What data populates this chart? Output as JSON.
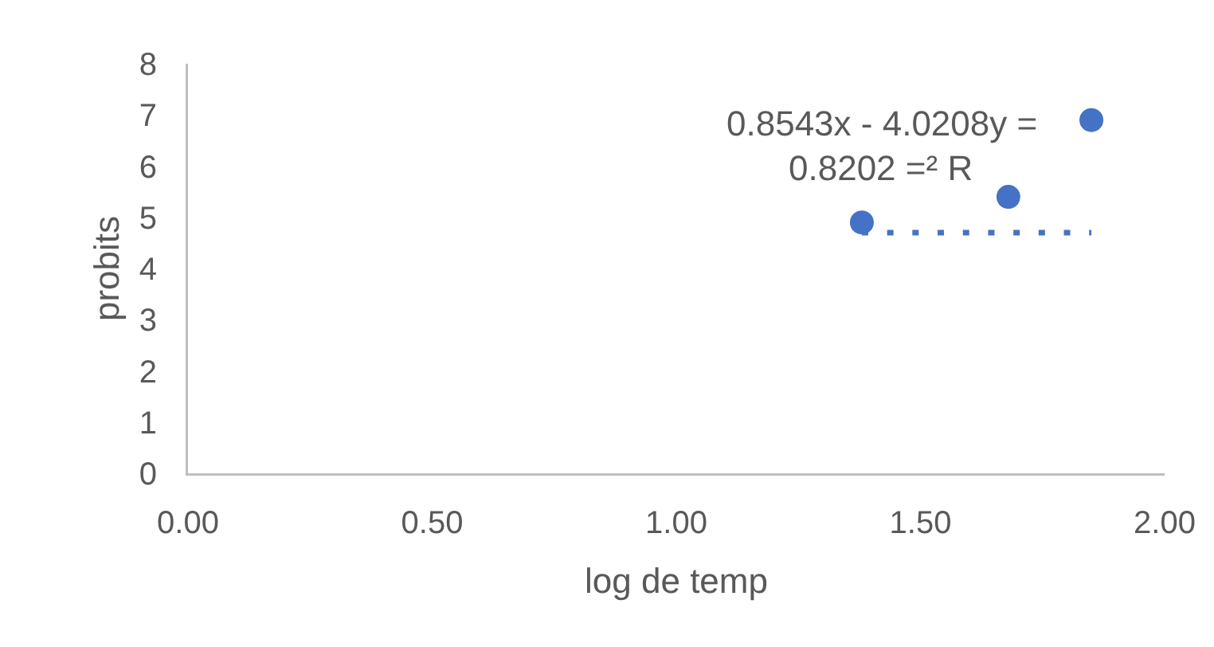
{
  "chart_data": {
    "type": "scatter",
    "xlabel": "log de temp",
    "ylabel": "probits",
    "xlim": [
      0,
      2
    ],
    "xticks": [
      {
        "value": 0,
        "label": "0.00"
      },
      {
        "value": 0.5,
        "label": "0.50"
      },
      {
        "value": 1,
        "label": "1.00"
      },
      {
        "value": 1.5,
        "label": "1.50"
      },
      {
        "value": 2,
        "label": "2.00"
      }
    ],
    "ylim": [
      0,
      8
    ],
    "yticks": [
      0,
      1,
      2,
      3,
      4,
      5,
      6,
      7,
      8
    ],
    "marker": "circle",
    "annotations": [
      "0.8543x - 4.0208y =",
      "0.8202 =² R"
    ],
    "series": [
      {
        "color": "#4472c4",
        "x": [
          1.38,
          1.68,
          1.85
        ],
        "values": [
          4.9,
          5.4,
          6.9
        ]
      },
      {
        "type": "line",
        "color": "#4472c4",
        "line_style": "dotted",
        "marker": "none",
        "x": [
          1.38,
          1.85
        ],
        "values": [
          4.7,
          4.7
        ]
      }
    ]
  }
}
